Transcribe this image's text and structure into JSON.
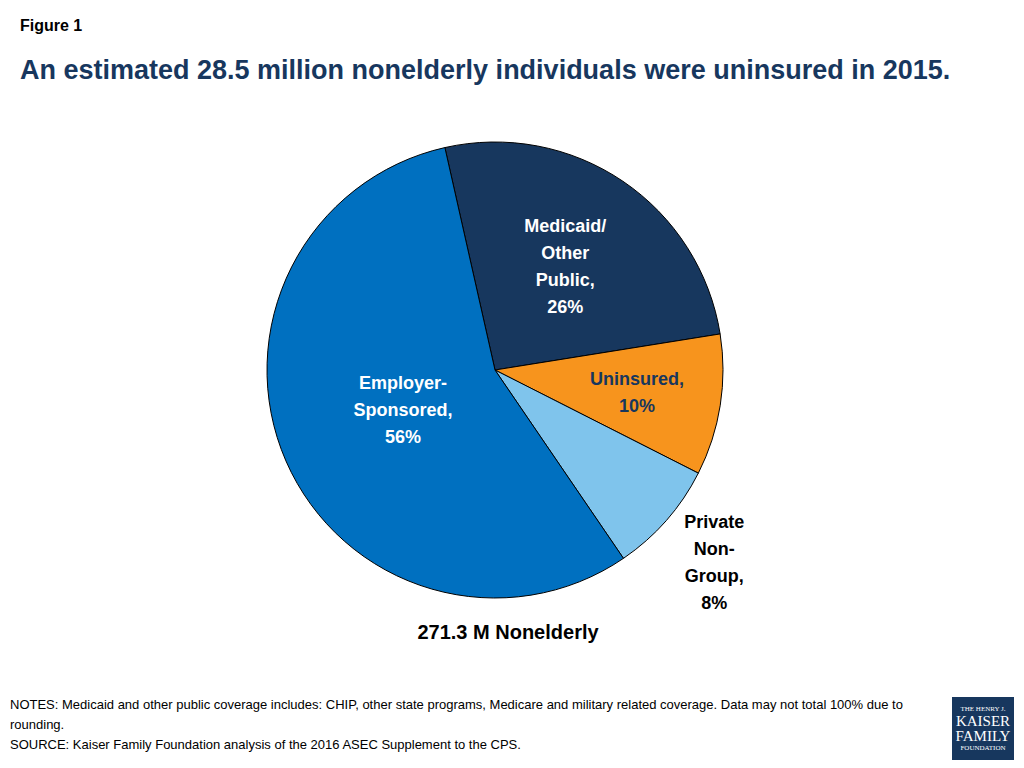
{
  "chart_data": {
    "type": "pie",
    "label": "Figure 1",
    "title": "An estimated 28.5 million nonelderly individuals were uninsured in 2015.",
    "categories": [
      "Medicaid/Other Public,",
      "Uninsured,",
      "Private Non-Group,",
      "Employer-Sponsored,"
    ],
    "values": [
      26,
      10,
      8,
      56
    ],
    "value_labels": [
      "26%",
      "10%",
      "8%",
      "56%"
    ],
    "colors": [
      "#17375e",
      "#f7941d",
      "#7fc4ec",
      "#0070c0"
    ],
    "data_labels": true,
    "total_label": "271.3 M Nonelderly",
    "notes": "NOTES: Medicaid and other public coverage includes: CHIP, other state programs, Medicare and military related coverage. Data may not total 100% due to rounding.",
    "source": "SOURCE: Kaiser Family Foundation analysis of the 2016 ASEC Supplement to the CPS.",
    "logo": [
      "THE HENRY J.",
      "KAISER",
      "FAMILY",
      "FOUNDATION"
    ]
  }
}
